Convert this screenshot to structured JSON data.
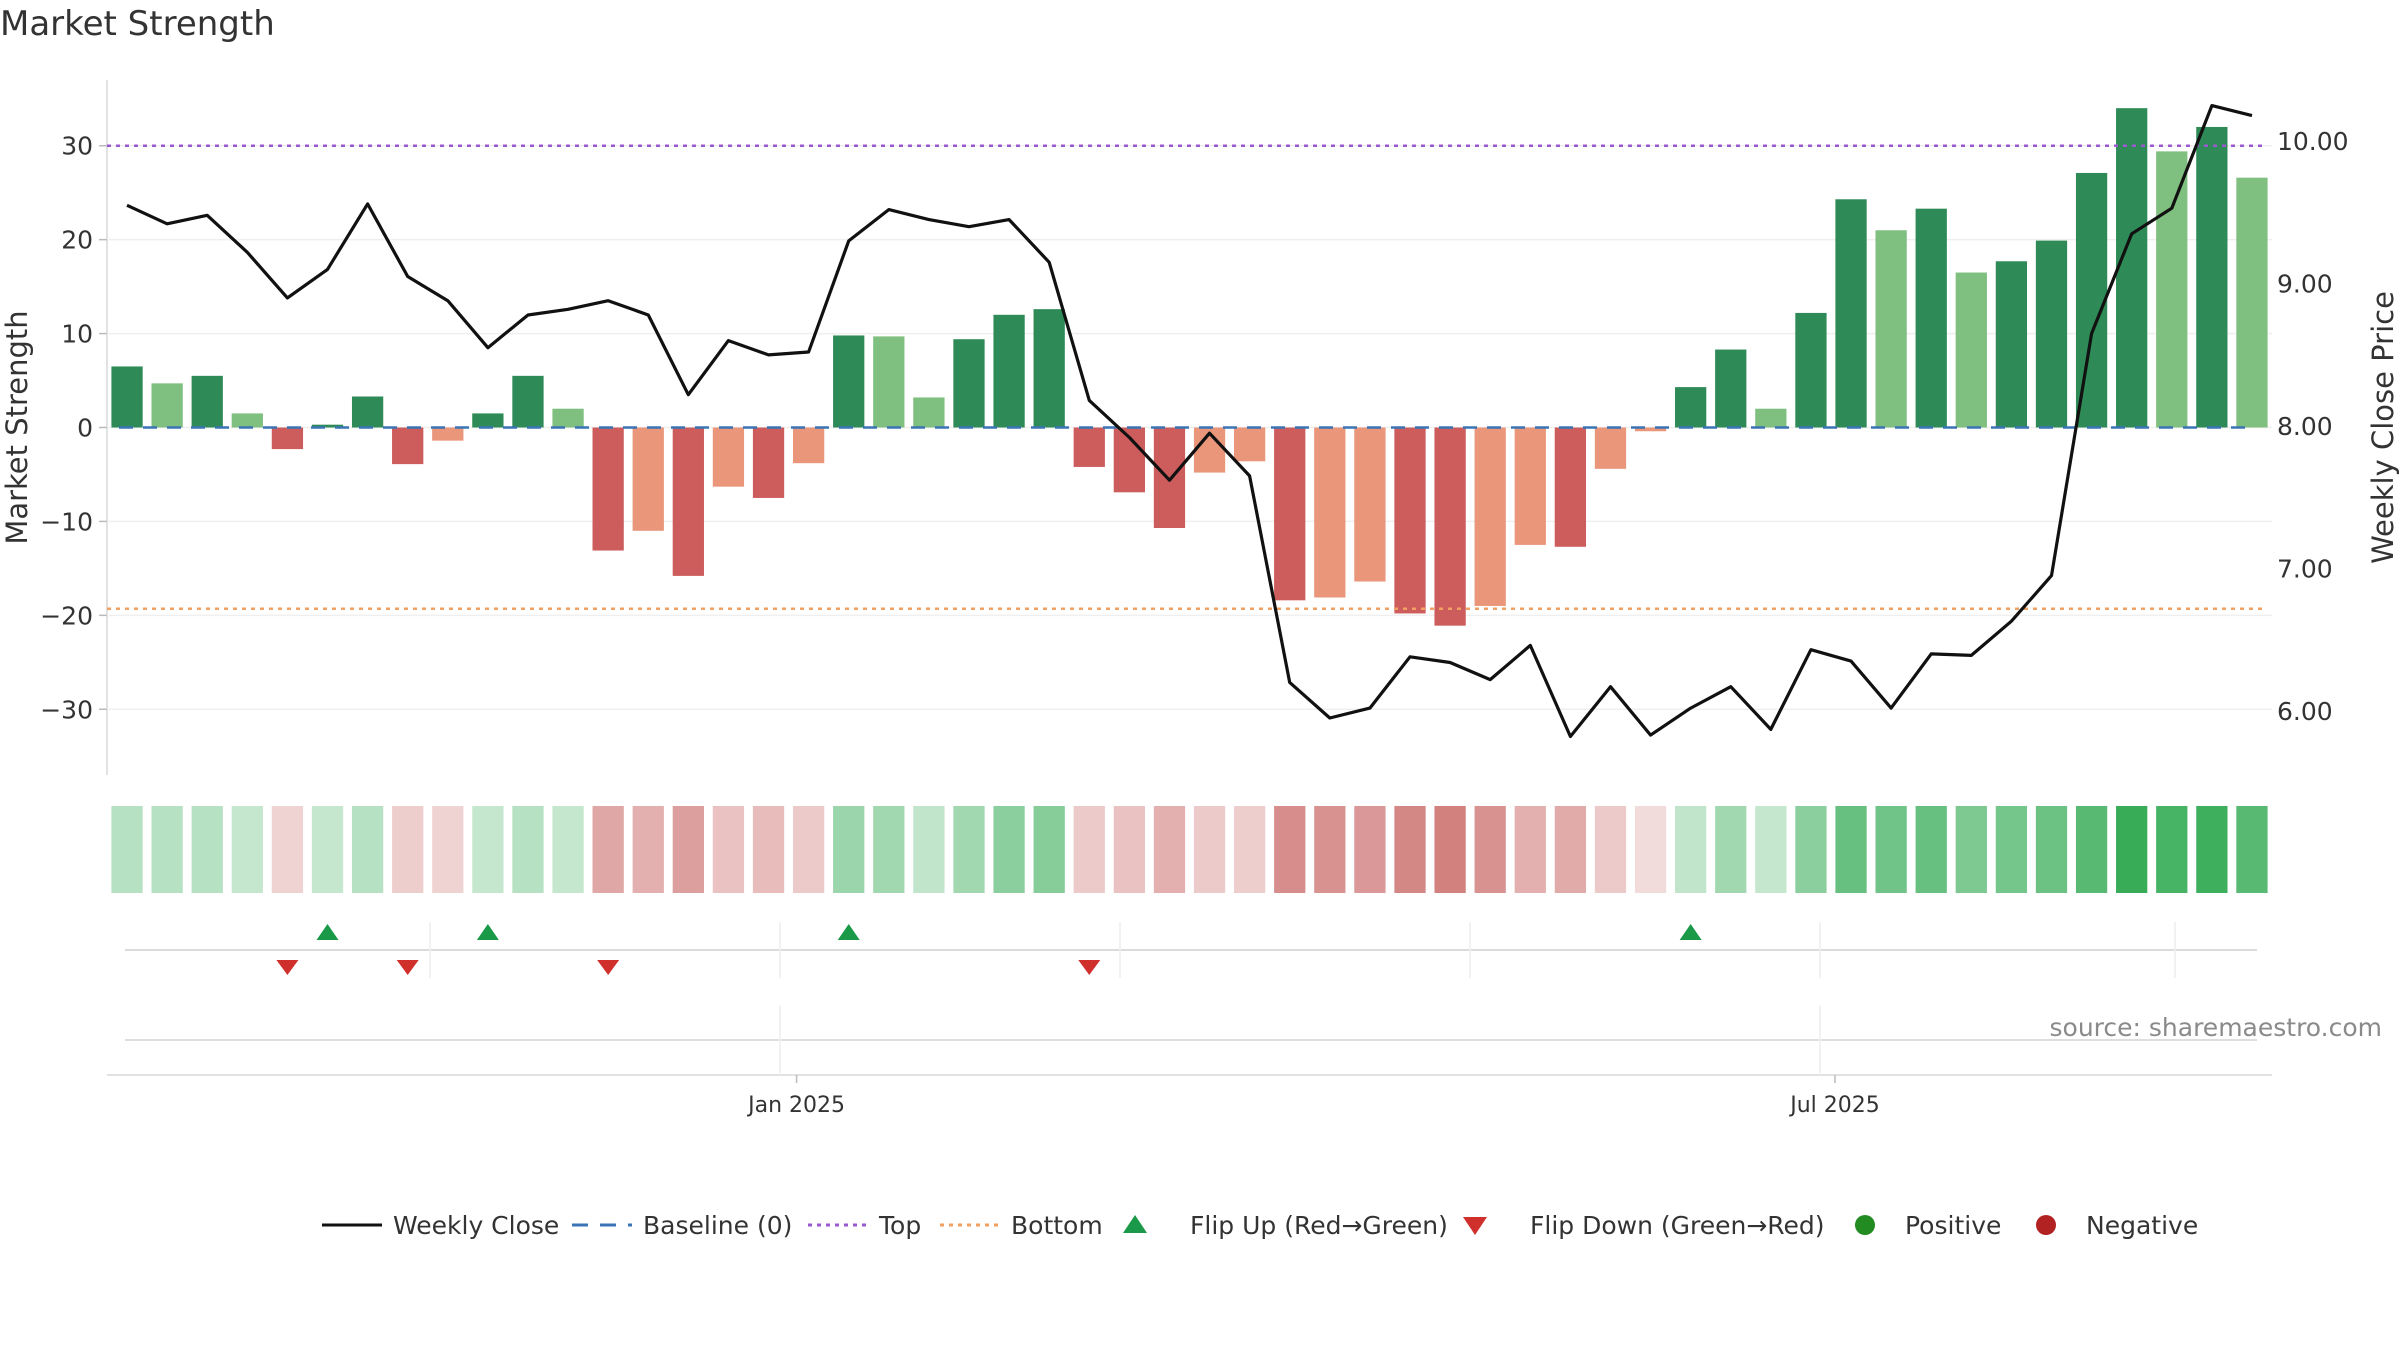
{
  "title": "Market Strength",
  "source": "source: sharemaestro.com",
  "colors": {
    "weekly_close": "#111111",
    "baseline": "#3a74b5",
    "top": "#9b59d0",
    "bottom": "#f0a060",
    "positive_strong": "#2e8b57",
    "positive_weak": "#7fbf7f",
    "negative_strong": "#cd5c5c",
    "negative_weak": "#e9967a",
    "flip_up": "#1a9a48",
    "flip_down": "#d0302c",
    "positive_dot": "#228b22",
    "negative_dot": "#b22222"
  },
  "chart_data": {
    "type": "bar",
    "title": "Market Strength",
    "ylabel": "Market Strength",
    "y2label": "Weekly Close Price",
    "ylim": [
      -37,
      37
    ],
    "y2lim": [
      5.55,
      10.43
    ],
    "yticks": [
      30,
      20,
      10,
      0,
      -10,
      -20,
      -30
    ],
    "ytick_labels": [
      "30",
      "20",
      "10",
      "0",
      "−10",
      "−20",
      "−30"
    ],
    "y2ticks": [
      10,
      9,
      8,
      7,
      6
    ],
    "y2tick_labels": [
      "10.00",
      "9.00",
      "8.00",
      "7.00",
      "6.00"
    ],
    "xtick_labels": [
      {
        "index": 16.7,
        "label": "Jan 2025"
      },
      {
        "index": 42.6,
        "label": "Jul 2025"
      }
    ],
    "grid": true,
    "reference_lines": {
      "top": 30,
      "bottom": -19.3,
      "baseline": 0
    },
    "strength": [
      6.5,
      4.7,
      5.5,
      1.5,
      -2.3,
      0.3,
      3.3,
      -3.9,
      -1.4,
      1.5,
      5.5,
      2.0,
      -13.1,
      -11.0,
      -15.8,
      -6.3,
      -7.5,
      -3.8,
      9.8,
      9.7,
      3.2,
      9.4,
      12.0,
      12.6,
      -4.2,
      -6.9,
      -10.7,
      -4.8,
      -3.6,
      -18.4,
      -18.1,
      -16.4,
      -19.8,
      -21.1,
      -19.0,
      -12.5,
      -12.7,
      -4.4,
      -0.4,
      4.3,
      8.3,
      2.0,
      12.2,
      24.3,
      21.0,
      23.3,
      16.5,
      17.7,
      19.9,
      27.1,
      34.0,
      29.4,
      32.0,
      26.6
    ],
    "strength_shade": [
      "strong",
      "weak",
      "strong",
      "weak",
      "strong",
      "strong",
      "strong",
      "strong",
      "weak",
      "strong",
      "strong",
      "weak",
      "strong",
      "weak",
      "strong",
      "weak",
      "strong",
      "weak",
      "strong",
      "weak",
      "weak",
      "strong",
      "strong",
      "strong",
      "strong",
      "strong",
      "strong",
      "weak",
      "weak",
      "strong",
      "weak",
      "weak",
      "strong",
      "strong",
      "weak",
      "weak",
      "strong",
      "weak",
      "weak",
      "strong",
      "strong",
      "weak",
      "strong",
      "strong",
      "weak",
      "strong",
      "weak",
      "strong",
      "strong",
      "strong",
      "strong",
      "weak",
      "strong",
      "weak"
    ],
    "weekly_close": [
      9.55,
      9.42,
      9.48,
      9.22,
      8.9,
      9.1,
      9.56,
      9.05,
      8.88,
      8.55,
      8.78,
      8.82,
      8.88,
      8.78,
      8.22,
      8.6,
      8.5,
      8.52,
      9.3,
      9.52,
      9.45,
      9.4,
      9.45,
      9.15,
      8.18,
      7.92,
      7.62,
      7.95,
      7.65,
      6.2,
      5.95,
      6.02,
      6.38,
      6.34,
      6.22,
      6.46,
      5.82,
      6.17,
      5.83,
      6.02,
      6.17,
      5.87,
      6.43,
      6.35,
      6.02,
      6.4,
      6.39,
      6.63,
      6.95,
      8.65,
      9.35,
      9.53,
      10.25,
      10.18
    ],
    "shading_intensity": [
      0.35,
      0.35,
      0.35,
      0.28,
      0.25,
      0.28,
      0.35,
      0.28,
      0.25,
      0.28,
      0.35,
      0.28,
      0.5,
      0.45,
      0.55,
      0.35,
      0.38,
      0.3,
      0.48,
      0.45,
      0.3,
      0.45,
      0.55,
      0.58,
      0.3,
      0.35,
      0.45,
      0.3,
      0.28,
      0.65,
      0.62,
      0.58,
      0.68,
      0.72,
      0.62,
      0.45,
      0.48,
      0.3,
      0.2,
      0.3,
      0.45,
      0.28,
      0.55,
      0.72,
      0.68,
      0.72,
      0.62,
      0.66,
      0.7,
      0.8,
      0.95,
      0.88,
      0.92,
      0.8
    ],
    "flip_up_indices": [
      5,
      9,
      18,
      39
    ],
    "flip_down_indices": [
      4,
      7,
      12,
      24
    ],
    "legend": {
      "placement": "bottom-center",
      "items": [
        {
          "label": "Weekly Close",
          "kind": "line"
        },
        {
          "label": "Baseline (0)",
          "kind": "dash"
        },
        {
          "label": "Top",
          "kind": "dot-line-top"
        },
        {
          "label": "Bottom",
          "kind": "dot-line-bottom"
        },
        {
          "label": "Flip Up (Red→Green)",
          "kind": "tri-up"
        },
        {
          "label": "Flip Down (Green→Red)",
          "kind": "tri-down"
        },
        {
          "label": "Positive",
          "kind": "dot-pos"
        },
        {
          "label": "Negative",
          "kind": "dot-neg"
        }
      ]
    }
  }
}
